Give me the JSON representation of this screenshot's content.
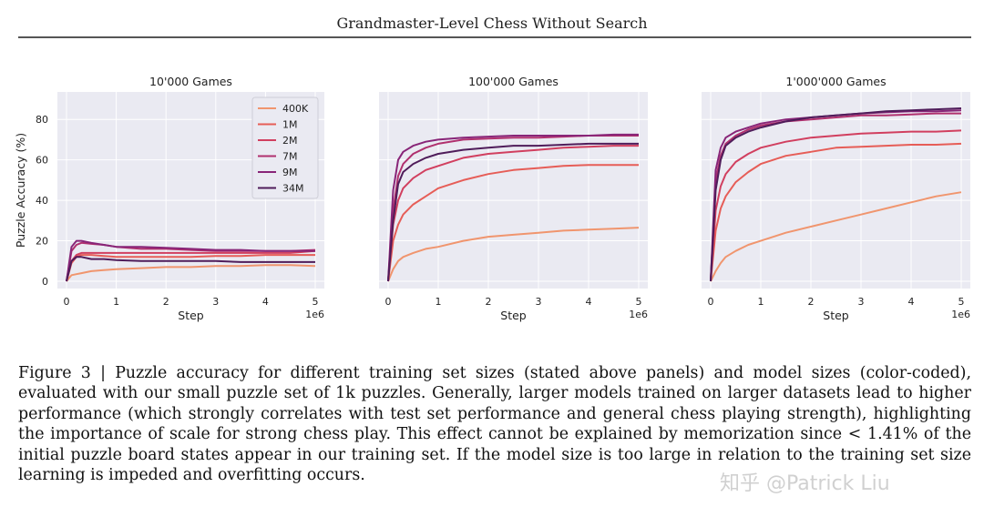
{
  "header": {
    "title": "Grandmaster-Level Chess Without Search"
  },
  "figure": {
    "caption": "Figure 3 | Puzzle accuracy for different training set sizes (stated above panels) and model sizes (color-coded), evaluated with our small puzzle set of 1k puzzles. Generally, larger models trained on larger datasets lead to higher performance (which strongly correlates with test set performance and general chess playing strength), highlighting the importance of scale for strong chess play. This effect cannot be explained by memorization since < 1.41% of the initial puzzle board states appear in our training set. If the model size is too large in relation to the training set size learning is impeded and overfitting occurs.",
    "watermark": "知乎 @Patrick Liu"
  },
  "chart_data": [
    {
      "type": "line",
      "title": "10'000 Games",
      "xlabel": "Step",
      "ylabel": "Puzzle Accuracy (%)",
      "x_offset_label": "1e6",
      "xlim": [
        0,
        5
      ],
      "ylim": [
        0,
        90
      ],
      "xticks": [
        "0",
        "1",
        "2",
        "3",
        "4",
        "5"
      ],
      "yticks": [
        "0",
        "20",
        "40",
        "60",
        "80"
      ],
      "legend": {
        "position": "top-right",
        "entries": [
          "400K",
          "1M",
          "2M",
          "7M",
          "9M",
          "34M"
        ]
      },
      "x": [
        0,
        0.1,
        0.2,
        0.3,
        0.5,
        0.75,
        1.0,
        1.5,
        2.0,
        2.5,
        3.0,
        3.5,
        4.0,
        4.5,
        5.0
      ],
      "series": [
        {
          "name": "400K",
          "color": "#f0956e",
          "values": [
            0,
            3,
            3.5,
            4,
            5,
            5.5,
            6,
            6.5,
            7,
            7,
            7.5,
            7.5,
            8,
            8,
            7.5
          ]
        },
        {
          "name": "1M",
          "color": "#e65d57",
          "values": [
            0,
            9,
            12,
            13,
            13,
            12.5,
            12,
            12,
            12,
            12,
            12.5,
            12.5,
            13,
            13,
            13
          ]
        },
        {
          "name": "2M",
          "color": "#d13f5f",
          "values": [
            0,
            10,
            13,
            14,
            14,
            14,
            14,
            14,
            14,
            14,
            14,
            14,
            14,
            14,
            15
          ]
        },
        {
          "name": "7M",
          "color": "#b0306e",
          "values": [
            0,
            15,
            18,
            19,
            18.5,
            18,
            17,
            16,
            16,
            15.5,
            15,
            15,
            15,
            15,
            15.5
          ]
        },
        {
          "name": "9M",
          "color": "#882578",
          "values": [
            0,
            17,
            20,
            20,
            19,
            18,
            17,
            17,
            16.5,
            16,
            15.5,
            15.5,
            15,
            15,
            15
          ]
        },
        {
          "name": "34M",
          "color": "#4f1c5a",
          "values": [
            0,
            10,
            12,
            12,
            11,
            11,
            10.5,
            10,
            10,
            10,
            10,
            9.5,
            9.5,
            9.5,
            9.5
          ]
        }
      ]
    },
    {
      "type": "line",
      "title": "100'000 Games",
      "xlabel": "Step",
      "ylabel": "",
      "x_offset_label": "1e6",
      "xlim": [
        0,
        5
      ],
      "ylim": [
        0,
        90
      ],
      "xticks": [
        "0",
        "1",
        "2",
        "3",
        "4",
        "5"
      ],
      "yticks": [],
      "legend": null,
      "x": [
        0,
        0.1,
        0.2,
        0.3,
        0.5,
        0.75,
        1.0,
        1.5,
        2.0,
        2.5,
        3.0,
        3.5,
        4.0,
        4.5,
        5.0
      ],
      "series": [
        {
          "name": "400K",
          "color": "#f0956e",
          "values": [
            0,
            6,
            10,
            12,
            14,
            16,
            17,
            20,
            22,
            23,
            24,
            25,
            25.5,
            26,
            26.5
          ]
        },
        {
          "name": "1M",
          "color": "#e65d57",
          "values": [
            0,
            20,
            28,
            33,
            38,
            42,
            46,
            50,
            53,
            55,
            56,
            57,
            57.5,
            57.5,
            57.5
          ]
        },
        {
          "name": "2M",
          "color": "#d13f5f",
          "values": [
            0,
            28,
            40,
            46,
            51,
            55,
            57,
            61,
            63,
            64,
            65,
            66,
            66.5,
            67,
            67
          ]
        },
        {
          "name": "7M",
          "color": "#b0306e",
          "values": [
            0,
            35,
            52,
            58,
            63,
            66,
            68,
            70,
            70.5,
            71,
            71,
            71.5,
            72,
            72,
            72
          ]
        },
        {
          "name": "9M",
          "color": "#882578",
          "values": [
            0,
            45,
            60,
            64,
            67,
            69,
            70,
            71,
            71.5,
            72,
            72,
            72,
            72,
            72.5,
            72.5
          ]
        },
        {
          "name": "34M",
          "color": "#4f1c5a",
          "values": [
            0,
            30,
            48,
            54,
            58,
            61,
            63,
            65,
            66,
            67,
            67,
            67.5,
            68,
            68,
            68
          ]
        }
      ]
    },
    {
      "type": "line",
      "title": "1'000'000 Games",
      "xlabel": "Step",
      "ylabel": "",
      "x_offset_label": "1e6",
      "xlim": [
        0,
        5
      ],
      "ylim": [
        0,
        90
      ],
      "xticks": [
        "0",
        "1",
        "2",
        "3",
        "4",
        "5"
      ],
      "yticks": [],
      "legend": null,
      "x": [
        0,
        0.1,
        0.2,
        0.3,
        0.5,
        0.75,
        1.0,
        1.5,
        2.0,
        2.5,
        3.0,
        3.5,
        4.0,
        4.5,
        5.0
      ],
      "series": [
        {
          "name": "400K",
          "color": "#f0956e",
          "values": [
            0,
            5,
            9,
            12,
            15,
            18,
            20,
            24,
            27,
            30,
            33,
            36,
            39,
            42,
            44
          ]
        },
        {
          "name": "1M",
          "color": "#e65d57",
          "values": [
            0,
            25,
            36,
            42,
            49,
            54,
            58,
            62,
            64,
            66,
            66.5,
            67,
            67.5,
            67.5,
            68
          ]
        },
        {
          "name": "2M",
          "color": "#d13f5f",
          "values": [
            0,
            35,
            47,
            53,
            59,
            63,
            66,
            69,
            71,
            72,
            73,
            73.5,
            74,
            74,
            74.5
          ]
        },
        {
          "name": "7M",
          "color": "#b0306e",
          "values": [
            0,
            50,
            62,
            68,
            72,
            75,
            77,
            79,
            80,
            81,
            82,
            82,
            82.5,
            83,
            83
          ]
        },
        {
          "name": "9M",
          "color": "#882578",
          "values": [
            0,
            55,
            66,
            71,
            74,
            76,
            78,
            80,
            81,
            82,
            83,
            83.5,
            84,
            84,
            84.5
          ]
        },
        {
          "name": "34M",
          "color": "#4f1c5a",
          "values": [
            0,
            45,
            60,
            67,
            71,
            74,
            76,
            79,
            81,
            82,
            83,
            84,
            84.5,
            85,
            85.5
          ]
        }
      ]
    }
  ]
}
